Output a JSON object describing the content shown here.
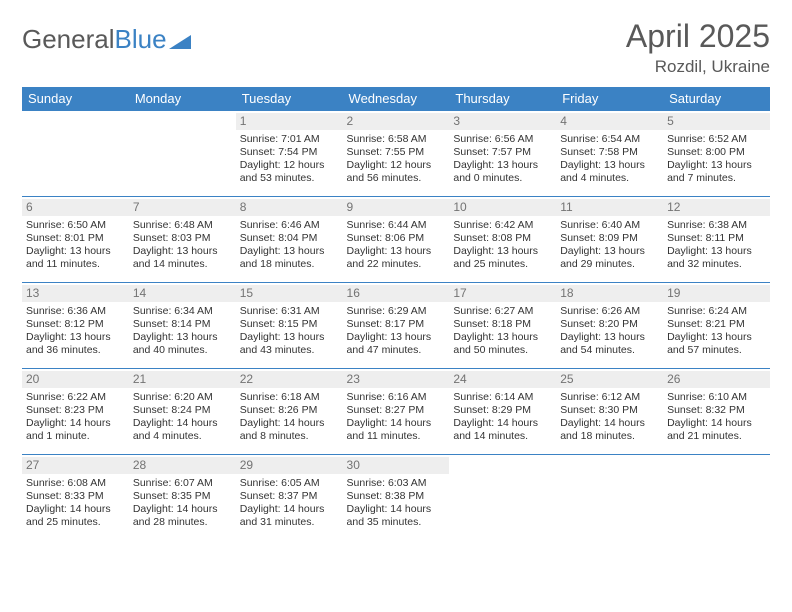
{
  "brand": {
    "part1": "General",
    "part2": "Blue"
  },
  "title": "April 2025",
  "location": "Rozdil, Ukraine",
  "colors": {
    "header_bg": "#3b82c4",
    "header_fg": "#ffffff",
    "daynum_bg": "#eeeeee",
    "daynum_fg": "#737373",
    "border": "#3b82c4",
    "text": "#333333",
    "title_fg": "#595959"
  },
  "weekdays": [
    "Sunday",
    "Monday",
    "Tuesday",
    "Wednesday",
    "Thursday",
    "Friday",
    "Saturday"
  ],
  "weeks": [
    [
      {
        "n": "",
        "sr": "",
        "ss": "",
        "dl": ""
      },
      {
        "n": "",
        "sr": "",
        "ss": "",
        "dl": ""
      },
      {
        "n": "1",
        "sr": "Sunrise: 7:01 AM",
        "ss": "Sunset: 7:54 PM",
        "dl": "Daylight: 12 hours and 53 minutes."
      },
      {
        "n": "2",
        "sr": "Sunrise: 6:58 AM",
        "ss": "Sunset: 7:55 PM",
        "dl": "Daylight: 12 hours and 56 minutes."
      },
      {
        "n": "3",
        "sr": "Sunrise: 6:56 AM",
        "ss": "Sunset: 7:57 PM",
        "dl": "Daylight: 13 hours and 0 minutes."
      },
      {
        "n": "4",
        "sr": "Sunrise: 6:54 AM",
        "ss": "Sunset: 7:58 PM",
        "dl": "Daylight: 13 hours and 4 minutes."
      },
      {
        "n": "5",
        "sr": "Sunrise: 6:52 AM",
        "ss": "Sunset: 8:00 PM",
        "dl": "Daylight: 13 hours and 7 minutes."
      }
    ],
    [
      {
        "n": "6",
        "sr": "Sunrise: 6:50 AM",
        "ss": "Sunset: 8:01 PM",
        "dl": "Daylight: 13 hours and 11 minutes."
      },
      {
        "n": "7",
        "sr": "Sunrise: 6:48 AM",
        "ss": "Sunset: 8:03 PM",
        "dl": "Daylight: 13 hours and 14 minutes."
      },
      {
        "n": "8",
        "sr": "Sunrise: 6:46 AM",
        "ss": "Sunset: 8:04 PM",
        "dl": "Daylight: 13 hours and 18 minutes."
      },
      {
        "n": "9",
        "sr": "Sunrise: 6:44 AM",
        "ss": "Sunset: 8:06 PM",
        "dl": "Daylight: 13 hours and 22 minutes."
      },
      {
        "n": "10",
        "sr": "Sunrise: 6:42 AM",
        "ss": "Sunset: 8:08 PM",
        "dl": "Daylight: 13 hours and 25 minutes."
      },
      {
        "n": "11",
        "sr": "Sunrise: 6:40 AM",
        "ss": "Sunset: 8:09 PM",
        "dl": "Daylight: 13 hours and 29 minutes."
      },
      {
        "n": "12",
        "sr": "Sunrise: 6:38 AM",
        "ss": "Sunset: 8:11 PM",
        "dl": "Daylight: 13 hours and 32 minutes."
      }
    ],
    [
      {
        "n": "13",
        "sr": "Sunrise: 6:36 AM",
        "ss": "Sunset: 8:12 PM",
        "dl": "Daylight: 13 hours and 36 minutes."
      },
      {
        "n": "14",
        "sr": "Sunrise: 6:34 AM",
        "ss": "Sunset: 8:14 PM",
        "dl": "Daylight: 13 hours and 40 minutes."
      },
      {
        "n": "15",
        "sr": "Sunrise: 6:31 AM",
        "ss": "Sunset: 8:15 PM",
        "dl": "Daylight: 13 hours and 43 minutes."
      },
      {
        "n": "16",
        "sr": "Sunrise: 6:29 AM",
        "ss": "Sunset: 8:17 PM",
        "dl": "Daylight: 13 hours and 47 minutes."
      },
      {
        "n": "17",
        "sr": "Sunrise: 6:27 AM",
        "ss": "Sunset: 8:18 PM",
        "dl": "Daylight: 13 hours and 50 minutes."
      },
      {
        "n": "18",
        "sr": "Sunrise: 6:26 AM",
        "ss": "Sunset: 8:20 PM",
        "dl": "Daylight: 13 hours and 54 minutes."
      },
      {
        "n": "19",
        "sr": "Sunrise: 6:24 AM",
        "ss": "Sunset: 8:21 PM",
        "dl": "Daylight: 13 hours and 57 minutes."
      }
    ],
    [
      {
        "n": "20",
        "sr": "Sunrise: 6:22 AM",
        "ss": "Sunset: 8:23 PM",
        "dl": "Daylight: 14 hours and 1 minute."
      },
      {
        "n": "21",
        "sr": "Sunrise: 6:20 AM",
        "ss": "Sunset: 8:24 PM",
        "dl": "Daylight: 14 hours and 4 minutes."
      },
      {
        "n": "22",
        "sr": "Sunrise: 6:18 AM",
        "ss": "Sunset: 8:26 PM",
        "dl": "Daylight: 14 hours and 8 minutes."
      },
      {
        "n": "23",
        "sr": "Sunrise: 6:16 AM",
        "ss": "Sunset: 8:27 PM",
        "dl": "Daylight: 14 hours and 11 minutes."
      },
      {
        "n": "24",
        "sr": "Sunrise: 6:14 AM",
        "ss": "Sunset: 8:29 PM",
        "dl": "Daylight: 14 hours and 14 minutes."
      },
      {
        "n": "25",
        "sr": "Sunrise: 6:12 AM",
        "ss": "Sunset: 8:30 PM",
        "dl": "Daylight: 14 hours and 18 minutes."
      },
      {
        "n": "26",
        "sr": "Sunrise: 6:10 AM",
        "ss": "Sunset: 8:32 PM",
        "dl": "Daylight: 14 hours and 21 minutes."
      }
    ],
    [
      {
        "n": "27",
        "sr": "Sunrise: 6:08 AM",
        "ss": "Sunset: 8:33 PM",
        "dl": "Daylight: 14 hours and 25 minutes."
      },
      {
        "n": "28",
        "sr": "Sunrise: 6:07 AM",
        "ss": "Sunset: 8:35 PM",
        "dl": "Daylight: 14 hours and 28 minutes."
      },
      {
        "n": "29",
        "sr": "Sunrise: 6:05 AM",
        "ss": "Sunset: 8:37 PM",
        "dl": "Daylight: 14 hours and 31 minutes."
      },
      {
        "n": "30",
        "sr": "Sunrise: 6:03 AM",
        "ss": "Sunset: 8:38 PM",
        "dl": "Daylight: 14 hours and 35 minutes."
      },
      {
        "n": "",
        "sr": "",
        "ss": "",
        "dl": ""
      },
      {
        "n": "",
        "sr": "",
        "ss": "",
        "dl": ""
      },
      {
        "n": "",
        "sr": "",
        "ss": "",
        "dl": ""
      }
    ]
  ]
}
